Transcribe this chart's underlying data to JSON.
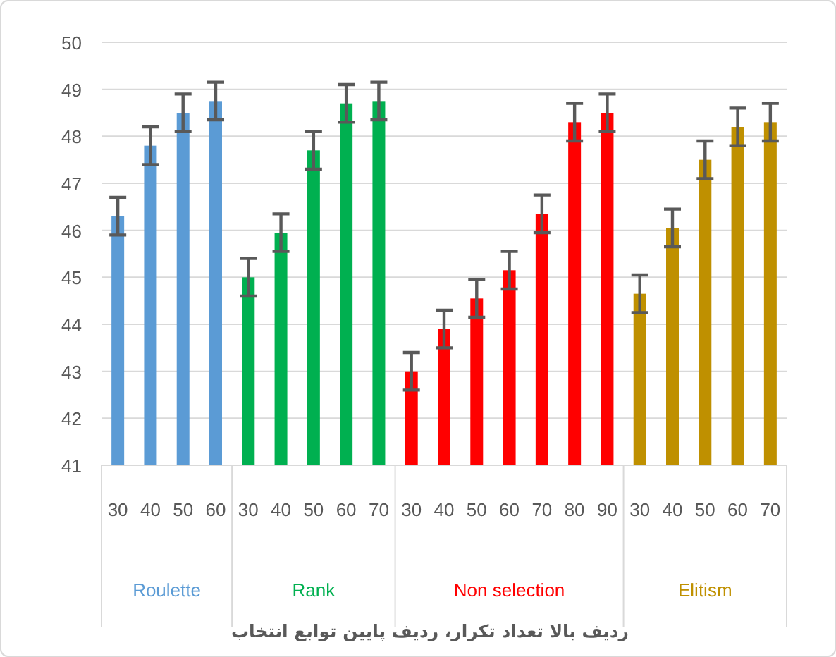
{
  "chart_data": {
    "type": "bar",
    "annotations": [
      "ردیف بالا تعداد تکرار، ردیف پایین توابع انتخاب"
    ],
    "categories": [
      "30",
      "40",
      "50",
      "60",
      "30",
      "40",
      "50",
      "60",
      "70",
      "30",
      "40",
      "50",
      "60",
      "70",
      "80",
      "90",
      "30",
      "40",
      "50",
      "60",
      "70"
    ],
    "series": [
      {
        "name": "Roulette",
        "color": "#5b9bd5",
        "values": [
          46.3,
          47.8,
          48.5,
          48.75,
          null,
          null,
          null,
          null,
          null,
          null,
          null,
          null,
          null,
          null,
          null,
          null,
          null,
          null,
          null,
          null,
          null
        ],
        "errors": [
          0.4,
          0.4,
          0.4,
          0.4,
          null,
          null,
          null,
          null,
          null,
          null,
          null,
          null,
          null,
          null,
          null,
          null,
          null,
          null,
          null,
          null,
          null
        ]
      },
      {
        "name": "Rank",
        "color": "#00b050",
        "values": [
          null,
          null,
          null,
          null,
          45.0,
          45.95,
          47.7,
          48.7,
          48.75,
          null,
          null,
          null,
          null,
          null,
          null,
          null,
          null,
          null,
          null,
          null,
          null
        ],
        "errors": [
          null,
          null,
          null,
          null,
          0.4,
          0.4,
          0.4,
          0.4,
          0.4,
          null,
          null,
          null,
          null,
          null,
          null,
          null,
          null,
          null,
          null,
          null,
          null
        ]
      },
      {
        "name": "Non selection",
        "color": "#ff0000",
        "values": [
          null,
          null,
          null,
          null,
          null,
          null,
          null,
          null,
          null,
          43.0,
          43.9,
          44.55,
          45.15,
          46.35,
          48.3,
          48.5,
          null,
          null,
          null,
          null,
          null
        ],
        "errors": [
          null,
          null,
          null,
          null,
          null,
          null,
          null,
          null,
          null,
          0.4,
          0.4,
          0.4,
          0.4,
          0.4,
          0.4,
          0.4,
          null,
          null,
          null,
          null,
          null
        ]
      },
      {
        "name": "Elitism",
        "color": "#bf9000",
        "values": [
          null,
          null,
          null,
          null,
          null,
          null,
          null,
          null,
          null,
          null,
          null,
          null,
          null,
          null,
          null,
          null,
          44.65,
          46.05,
          47.5,
          48.2,
          48.3
        ],
        "errors": [
          null,
          null,
          null,
          null,
          null,
          null,
          null,
          null,
          null,
          null,
          null,
          null,
          null,
          null,
          null,
          null,
          0.4,
          0.4,
          0.4,
          0.4,
          0.4
        ]
      }
    ],
    "ylim": [
      41,
      50
    ],
    "yticks": [
      41,
      42,
      43,
      44,
      45,
      46,
      47,
      48,
      49,
      50
    ],
    "grid": "y"
  }
}
